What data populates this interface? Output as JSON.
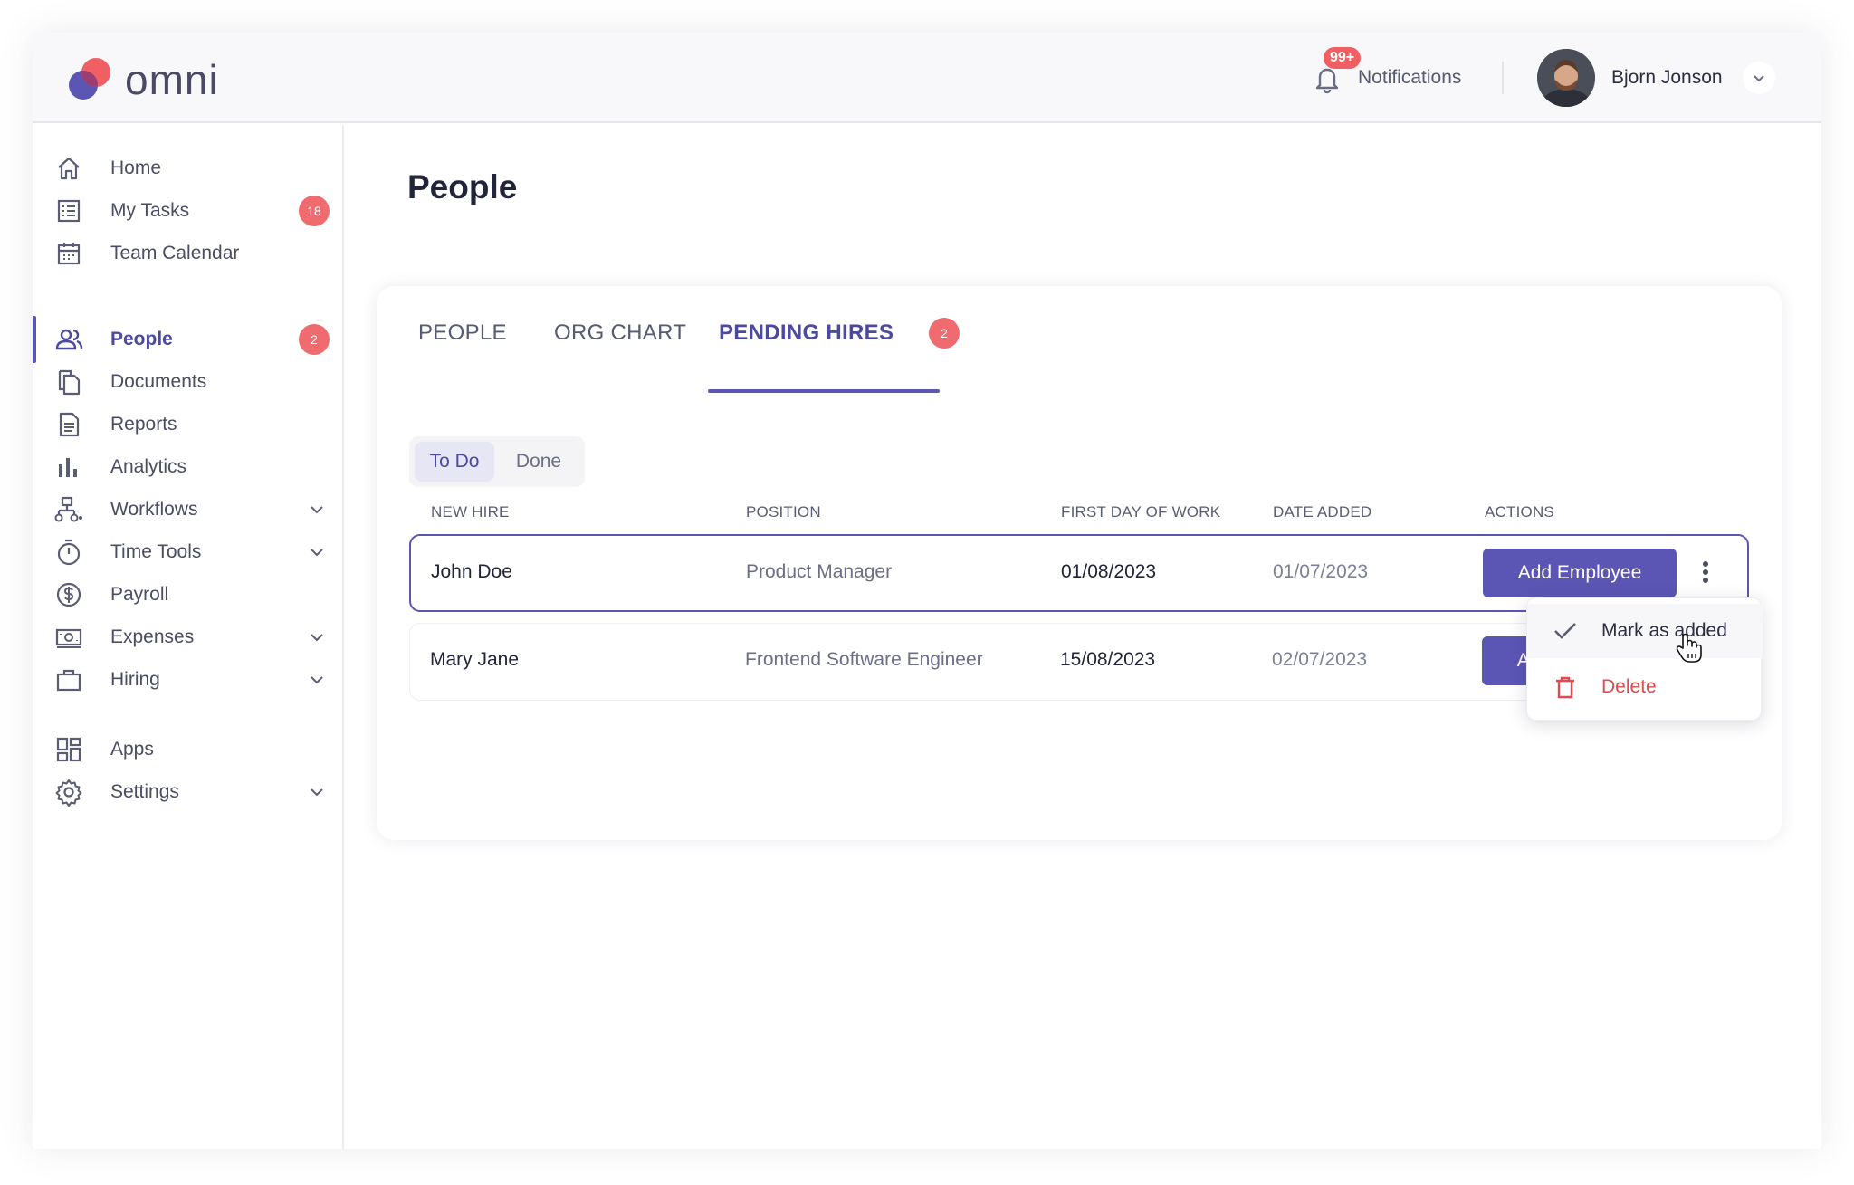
{
  "header": {
    "logo_text": "omni",
    "notifications_badge": "99+",
    "notifications_label": "Notifications",
    "user_name": "Bjorn Jonson"
  },
  "sidebar": {
    "items": [
      {
        "label": "Home",
        "icon": "home-icon"
      },
      {
        "label": "My Tasks",
        "icon": "tasks-icon",
        "count": "18"
      },
      {
        "label": "Team Calendar",
        "icon": "calendar-icon"
      },
      {
        "label": "People",
        "icon": "people-icon",
        "count": "2",
        "active": true
      },
      {
        "label": "Documents",
        "icon": "documents-icon"
      },
      {
        "label": "Reports",
        "icon": "reports-icon"
      },
      {
        "label": "Analytics",
        "icon": "analytics-icon"
      },
      {
        "label": "Workflows",
        "icon": "workflows-icon",
        "expandable": true
      },
      {
        "label": "Time Tools",
        "icon": "timer-icon",
        "expandable": true
      },
      {
        "label": "Payroll",
        "icon": "dollar-icon"
      },
      {
        "label": "Expenses",
        "icon": "expenses-icon",
        "expandable": true
      },
      {
        "label": "Hiring",
        "icon": "briefcase-icon",
        "expandable": true
      },
      {
        "label": "Apps",
        "icon": "apps-icon"
      },
      {
        "label": "Settings",
        "icon": "gear-icon",
        "expandable": true
      }
    ]
  },
  "main": {
    "title": "People",
    "tabs": [
      {
        "label": "PEOPLE"
      },
      {
        "label": "ORG CHART"
      },
      {
        "label": "PENDING HIRES",
        "count": "2",
        "active": true
      }
    ],
    "filter": {
      "todo": "To Do",
      "done": "Done",
      "selected": "To Do"
    },
    "columns": [
      "NEW HIRE",
      "POSITION",
      "FIRST DAY OF WORK",
      "DATE ADDED",
      "ACTIONS"
    ],
    "rows": [
      {
        "name": "John Doe",
        "position": "Product Manager",
        "first_day": "01/08/2023",
        "date_added": "01/07/2023",
        "action": "Add Employee"
      },
      {
        "name": "Mary Jane",
        "position": "Frontend Software Engineer",
        "first_day": "15/08/2023",
        "date_added": "02/07/2023",
        "action": "Add Employee"
      }
    ],
    "menu": {
      "mark_added": "Mark as added",
      "delete": "Delete"
    }
  },
  "colors": {
    "accent": "#5b56b4",
    "badge": "#ef6b70",
    "danger": "#e5484d"
  }
}
